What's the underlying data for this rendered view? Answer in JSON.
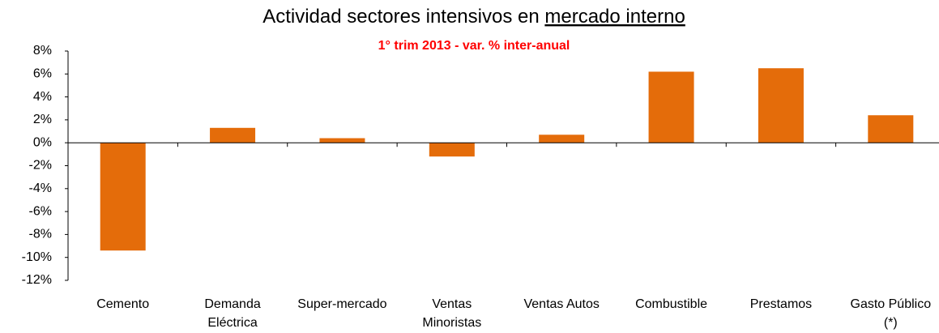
{
  "chart_data": {
    "type": "bar",
    "title": [
      "Actividad sectores intensivos en",
      "mercado interno"
    ],
    "subtitle": "1° trim 2013 - var. % inter-anual",
    "categories": [
      [
        "Cemento"
      ],
      [
        "Demanda",
        "Eléctrica"
      ],
      [
        "Super-mercado"
      ],
      [
        "Ventas",
        "Minoristas"
      ],
      [
        "Ventas Autos"
      ],
      [
        "Combustible"
      ],
      [
        "Prestamos"
      ],
      [
        "Gasto Público",
        "(*)"
      ]
    ],
    "values": [
      -9.4,
      1.3,
      0.4,
      -1.2,
      0.7,
      6.2,
      6.5,
      2.4
    ],
    "color": "#e46c0a",
    "ylim": [
      -12,
      8
    ],
    "yticks": [
      {
        "value": -12,
        "label": "-12%"
      },
      {
        "value": -10,
        "label": "-10%"
      },
      {
        "value": -8,
        "label": "-8%"
      },
      {
        "value": -6,
        "label": "-6%"
      },
      {
        "value": -4,
        "label": "-4%"
      },
      {
        "value": -2,
        "label": "-2%"
      },
      {
        "value": 0,
        "label": "0%"
      },
      {
        "value": 2,
        "label": "2%"
      },
      {
        "value": 4,
        "label": "4%"
      },
      {
        "value": 6,
        "label": "6%"
      },
      {
        "value": 8,
        "label": "8%"
      }
    ],
    "grid": false
  }
}
